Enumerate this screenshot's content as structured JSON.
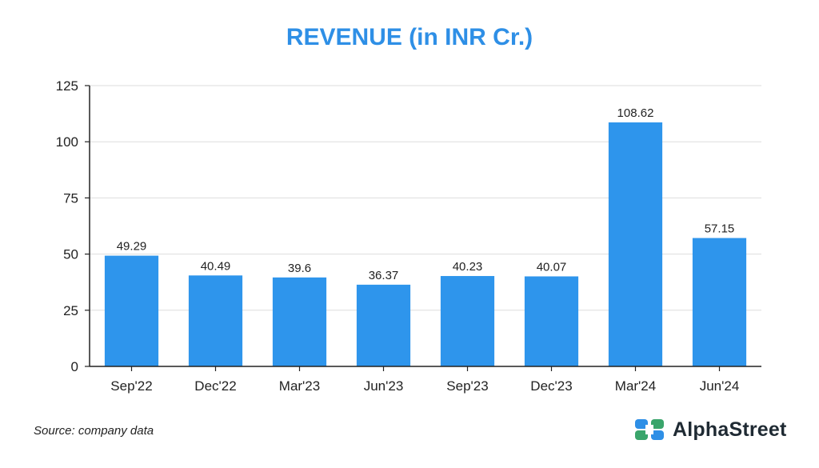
{
  "chart_data": {
    "type": "bar",
    "title": "REVENUE (in INR Cr.)",
    "categories": [
      "Sep'22",
      "Dec'22",
      "Mar'23",
      "Jun'23",
      "Sep'23",
      "Dec'23",
      "Mar'24",
      "Jun'24"
    ],
    "values": [
      49.29,
      40.49,
      39.6,
      36.37,
      40.23,
      40.07,
      108.62,
      57.15
    ],
    "value_labels": [
      "49.29",
      "40.49",
      "39.6",
      "36.37",
      "40.23",
      "40.07",
      "108.62",
      "57.15"
    ],
    "xlabel": "",
    "ylabel": "",
    "ylim": [
      0,
      125
    ],
    "yticks": [
      0,
      25,
      50,
      75,
      100,
      125
    ],
    "grid": true,
    "bar_color": "#2e95ec",
    "title_color": "#2e8fe6"
  },
  "footer": {
    "source": "Source: company data",
    "brand": "AlphaStreet",
    "logo_colors": [
      "#2e8fe6",
      "#3aa56b"
    ]
  }
}
